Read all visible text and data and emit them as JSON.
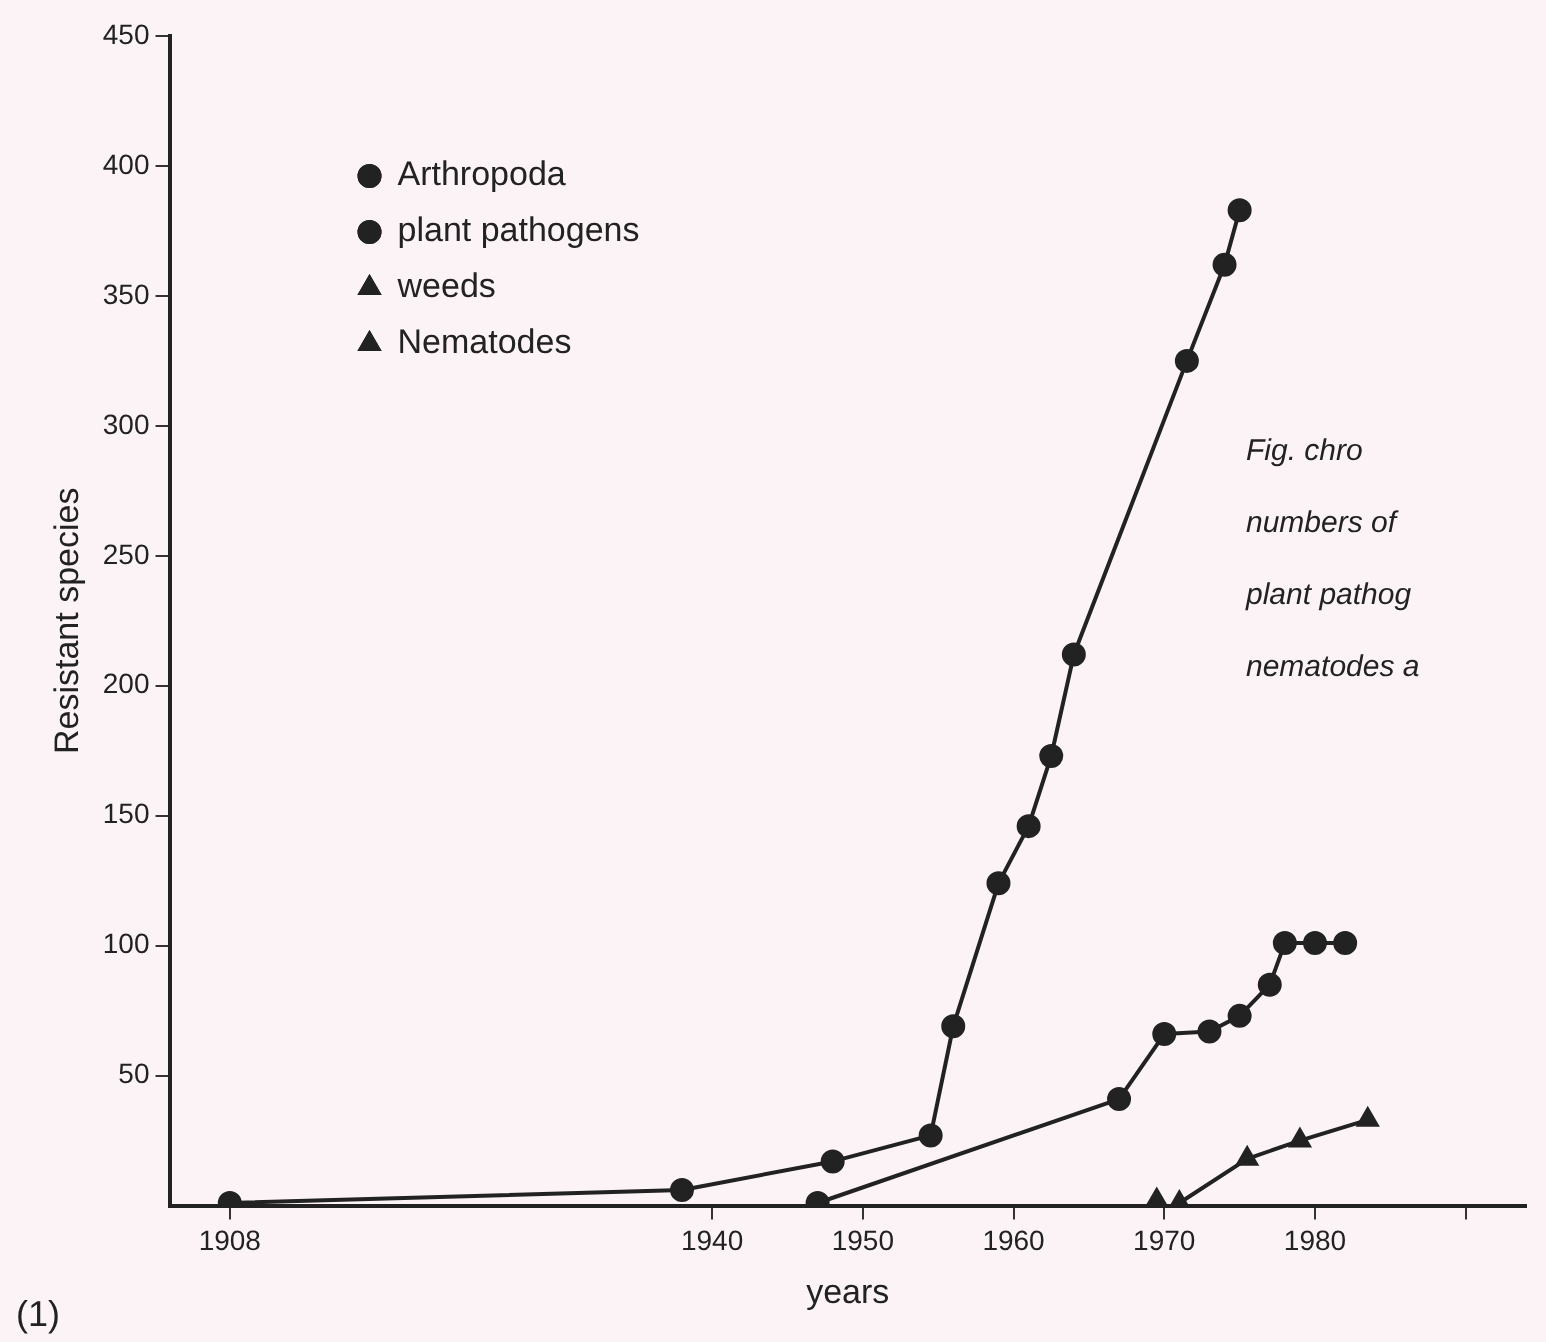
{
  "chart_data": {
    "type": "line",
    "xlabel": "years",
    "ylabel": "Resistant species",
    "xlim": [
      1904,
      1994
    ],
    "ylim": [
      0,
      450
    ],
    "xticks": [
      1908,
      1940,
      1950,
      1960,
      1970,
      1980,
      {
        "value": 1990,
        "label": null
      }
    ],
    "yticks": [
      50,
      100,
      150,
      200,
      250,
      300,
      350,
      400,
      450
    ],
    "grid": false,
    "legend": "top left",
    "series": [
      {
        "name": "Arthropoda",
        "color": "#222222",
        "marker": "circle",
        "x": [
          1908,
          1938,
          1948,
          1954.5,
          1956,
          1959,
          1961,
          1962.5,
          1964,
          1971.5,
          1974,
          1975
        ],
        "values": [
          1,
          6,
          17,
          27,
          69,
          124,
          146,
          173,
          212,
          325,
          362,
          383
        ]
      },
      {
        "name": "plant pathogens",
        "color": "#222222",
        "marker": "circle",
        "x": [
          1947,
          1967,
          1970,
          1973,
          1975,
          1977,
          1978,
          1980,
          1982
        ],
        "values": [
          1,
          41,
          66,
          67,
          73,
          85,
          101,
          101,
          101
        ]
      },
      {
        "name": "weeds",
        "color": "#222222",
        "marker": "triangle",
        "x": [
          1971,
          1975.5,
          1979,
          1983.5
        ],
        "values": [
          1,
          18,
          25,
          33
        ]
      },
      {
        "name": "Nematodes",
        "color": "#222222",
        "marker": "triangle",
        "x": [
          1969.5
        ],
        "values": [
          2
        ]
      }
    ],
    "annotations": [
      "Fig. chro",
      "numbers of",
      "plant pathog",
      "nematodes a",
      "(1)"
    ]
  }
}
